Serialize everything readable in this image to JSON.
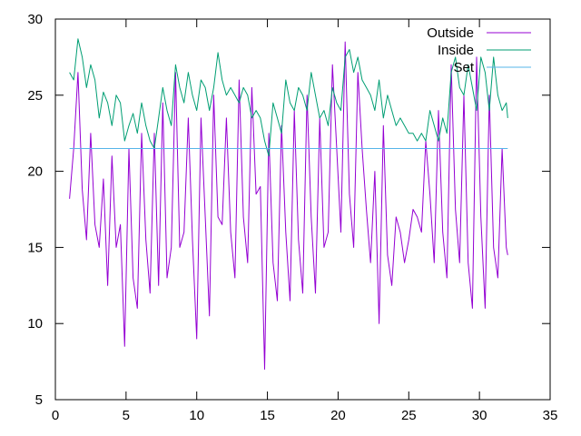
{
  "chart_data": {
    "type": "line",
    "title": "",
    "xlabel": "",
    "ylabel": "",
    "xlim": [
      0,
      35
    ],
    "ylim": [
      5,
      30
    ],
    "x_ticks": [
      0,
      5,
      10,
      15,
      20,
      25,
      30,
      35
    ],
    "y_ticks": [
      5,
      10,
      15,
      20,
      25,
      30
    ],
    "grid": false,
    "legend_position": "top-right",
    "series": [
      {
        "name": "Outside",
        "color": "#9400d3",
        "x": [
          1.0,
          1.3,
          1.6,
          1.9,
          2.2,
          2.5,
          2.8,
          3.1,
          3.4,
          3.7,
          4.0,
          4.3,
          4.6,
          4.9,
          5.2,
          5.5,
          5.8,
          6.1,
          6.4,
          6.7,
          7.0,
          7.3,
          7.6,
          7.9,
          8.2,
          8.5,
          8.8,
          9.1,
          9.4,
          9.7,
          10.0,
          10.3,
          10.6,
          10.9,
          11.2,
          11.5,
          11.8,
          12.1,
          12.4,
          12.7,
          13.0,
          13.3,
          13.6,
          13.9,
          14.2,
          14.5,
          14.8,
          15.1,
          15.4,
          15.7,
          16.0,
          16.3,
          16.6,
          16.9,
          17.2,
          17.5,
          17.8,
          18.1,
          18.4,
          18.7,
          19.0,
          19.3,
          19.6,
          19.9,
          20.2,
          20.5,
          20.8,
          21.1,
          21.4,
          21.7,
          22.0,
          22.3,
          22.6,
          22.9,
          23.2,
          23.5,
          23.8,
          24.1,
          24.4,
          24.7,
          25.0,
          25.3,
          25.6,
          25.9,
          26.2,
          26.5,
          26.8,
          27.1,
          27.4,
          27.7,
          28.0,
          28.3,
          28.6,
          28.9,
          29.2,
          29.5,
          29.8,
          30.1,
          30.4,
          30.7,
          31.0,
          31.3,
          31.6,
          31.9,
          32.0
        ],
        "values": [
          18.2,
          21.5,
          26.5,
          18.8,
          15.5,
          22.5,
          16.5,
          15.0,
          19.5,
          12.5,
          21.0,
          15.0,
          16.5,
          8.5,
          21.5,
          13.0,
          11.0,
          22.5,
          15.5,
          12.0,
          22.5,
          12.5,
          24.5,
          13.0,
          15.0,
          26.5,
          15.0,
          16.0,
          23.5,
          15.5,
          9.0,
          23.5,
          17.0,
          10.5,
          25.0,
          17.0,
          16.5,
          23.5,
          16.0,
          13.0,
          26.0,
          17.0,
          14.0,
          25.5,
          18.5,
          19.0,
          7.0,
          22.5,
          14.0,
          11.5,
          23.0,
          16.0,
          11.5,
          24.0,
          15.5,
          12.0,
          25.0,
          17.0,
          12.0,
          23.5,
          15.0,
          16.0,
          27.0,
          21.5,
          16.0,
          28.5,
          18.5,
          15.0,
          26.5,
          21.5,
          17.5,
          14.0,
          20.0,
          10.0,
          23.0,
          14.5,
          12.5,
          17.0,
          16.0,
          14.0,
          15.5,
          17.5,
          17.0,
          16.0,
          22.0,
          18.5,
          14.0,
          24.0,
          16.0,
          13.0,
          27.0,
          17.5,
          14.0,
          25.0,
          14.0,
          11.0,
          27.5,
          17.0,
          11.0,
          25.0,
          15.0,
          13.0,
          21.5,
          15.0,
          14.5
        ]
      },
      {
        "name": "Inside",
        "color": "#009e73",
        "x": [
          1.0,
          1.3,
          1.6,
          1.9,
          2.2,
          2.5,
          2.8,
          3.1,
          3.4,
          3.7,
          4.0,
          4.3,
          4.6,
          4.9,
          5.2,
          5.5,
          5.8,
          6.1,
          6.4,
          6.7,
          7.0,
          7.3,
          7.6,
          7.9,
          8.2,
          8.5,
          8.8,
          9.1,
          9.4,
          9.7,
          10.0,
          10.3,
          10.6,
          10.9,
          11.2,
          11.5,
          11.8,
          12.1,
          12.4,
          12.7,
          13.0,
          13.3,
          13.6,
          13.9,
          14.2,
          14.5,
          14.8,
          15.1,
          15.4,
          15.7,
          16.0,
          16.3,
          16.6,
          16.9,
          17.2,
          17.5,
          17.8,
          18.1,
          18.4,
          18.7,
          19.0,
          19.3,
          19.6,
          19.9,
          20.2,
          20.5,
          20.8,
          21.1,
          21.4,
          21.7,
          22.0,
          22.3,
          22.6,
          22.9,
          23.2,
          23.5,
          23.8,
          24.1,
          24.4,
          24.7,
          25.0,
          25.3,
          25.6,
          25.9,
          26.2,
          26.5,
          26.8,
          27.1,
          27.4,
          27.7,
          28.0,
          28.3,
          28.6,
          28.9,
          29.2,
          29.5,
          29.8,
          30.1,
          30.4,
          30.7,
          31.0,
          31.3,
          31.6,
          31.9,
          32.0
        ],
        "values": [
          26.5,
          26.0,
          28.7,
          27.5,
          25.5,
          27.0,
          26.0,
          23.5,
          25.2,
          24.5,
          23.0,
          25.0,
          24.5,
          22.0,
          23.0,
          23.8,
          22.5,
          24.5,
          23.0,
          22.0,
          21.5,
          23.5,
          25.5,
          24.0,
          23.0,
          27.0,
          25.5,
          24.5,
          26.5,
          25.0,
          24.0,
          26.0,
          25.5,
          24.0,
          25.5,
          27.8,
          26.0,
          25.0,
          25.5,
          25.0,
          24.5,
          25.5,
          25.0,
          23.5,
          24.0,
          23.5,
          22.0,
          21.0,
          24.5,
          23.5,
          22.5,
          26.0,
          24.5,
          24.0,
          25.5,
          25.0,
          24.0,
          26.5,
          25.0,
          23.5,
          24.0,
          23.0,
          25.5,
          24.5,
          24.0,
          27.5,
          28.0,
          26.5,
          27.5,
          26.0,
          25.5,
          25.0,
          24.0,
          26.0,
          23.5,
          25.0,
          24.0,
          23.0,
          23.5,
          23.0,
          22.5,
          22.5,
          22.0,
          22.5,
          22.0,
          24.0,
          23.0,
          22.0,
          23.5,
          22.5,
          26.5,
          27.5,
          25.5,
          25.0,
          27.0,
          25.5,
          24.0,
          27.5,
          26.5,
          24.0,
          27.5,
          25.0,
          24.0,
          24.5,
          23.5
        ]
      },
      {
        "name": "Set",
        "color": "#56b4e9",
        "x": [
          1.0,
          32.0
        ],
        "values": [
          21.5,
          21.5
        ]
      }
    ]
  }
}
